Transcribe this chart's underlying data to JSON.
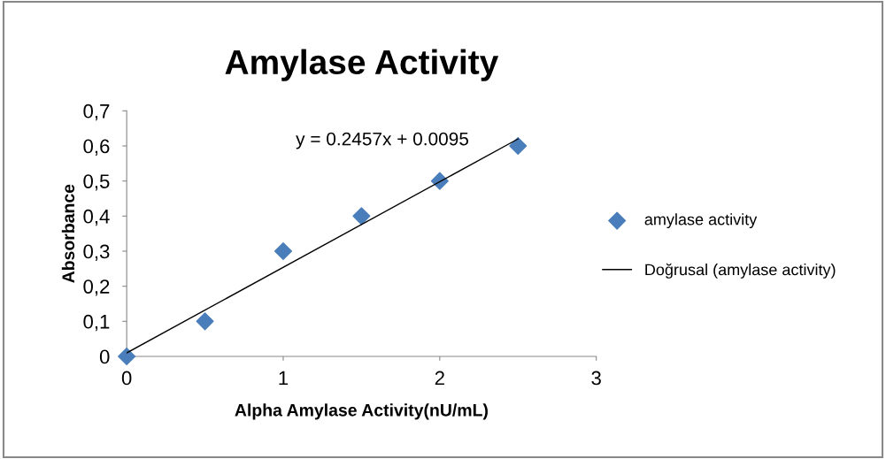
{
  "chart_data": {
    "type": "scatter",
    "title": "Amylase Activity",
    "xlabel": "Alpha Amylase Activity(nU/mL)",
    "ylabel": "Absorbance",
    "x": [
      0,
      0.5,
      1,
      1.5,
      2,
      2.5
    ],
    "series": [
      {
        "name": "amylase activity",
        "color": "#4a7ebb",
        "marker": "diamond",
        "values": [
          0,
          0.1,
          0.3,
          0.4,
          0.5,
          0.6
        ]
      },
      {
        "name": "Doğrusal (amylase activity)",
        "color": "#000000",
        "type": "line",
        "marker": "none",
        "line_style": "solid",
        "x": [
          0,
          2.5
        ],
        "values": [
          0.01,
          0.62
        ]
      }
    ],
    "annotations": [
      "y = 0.2457x + 0.0095"
    ],
    "xlim": [
      0,
      3
    ],
    "xticks": [
      0,
      1,
      2,
      3
    ],
    "ylim": [
      0,
      0.7
    ],
    "yticks": [
      0,
      {
        "value": 0.1,
        "label": "0,1"
      },
      {
        "value": 0.2,
        "label": "0,2"
      },
      {
        "value": 0.3,
        "label": "0,3"
      },
      {
        "value": 0.4,
        "label": "0,4"
      },
      {
        "value": 0.5,
        "label": "0,5"
      },
      {
        "value": 0.6,
        "label": "0,6"
      },
      {
        "value": 0.7,
        "label": "0,7"
      }
    ],
    "grid": false,
    "legend": "right"
  }
}
